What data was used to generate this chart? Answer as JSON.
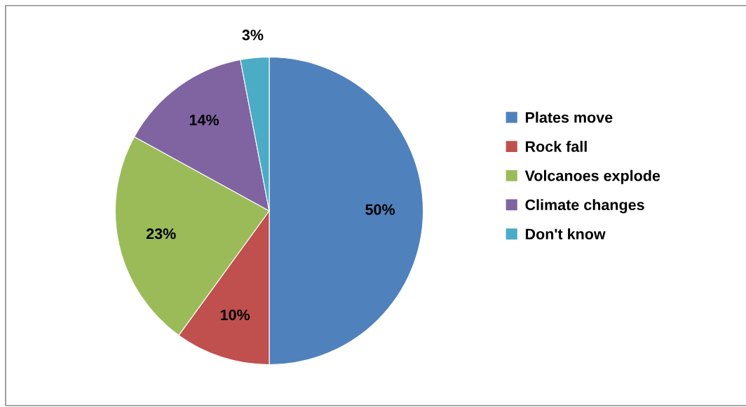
{
  "chart_data": {
    "type": "pie",
    "categories": [
      "Plates move",
      "Rock fall",
      "Volcanoes explode",
      "Climate changes",
      "Don't know"
    ],
    "values": [
      50,
      10,
      23,
      14,
      3
    ],
    "colors": [
      "#4f81bd",
      "#c0504d",
      "#9bbb59",
      "#8064a2",
      "#4bacc6"
    ],
    "value_labels": [
      "50%",
      "10%",
      "23%",
      "14%",
      "3%"
    ],
    "legend": "right"
  }
}
